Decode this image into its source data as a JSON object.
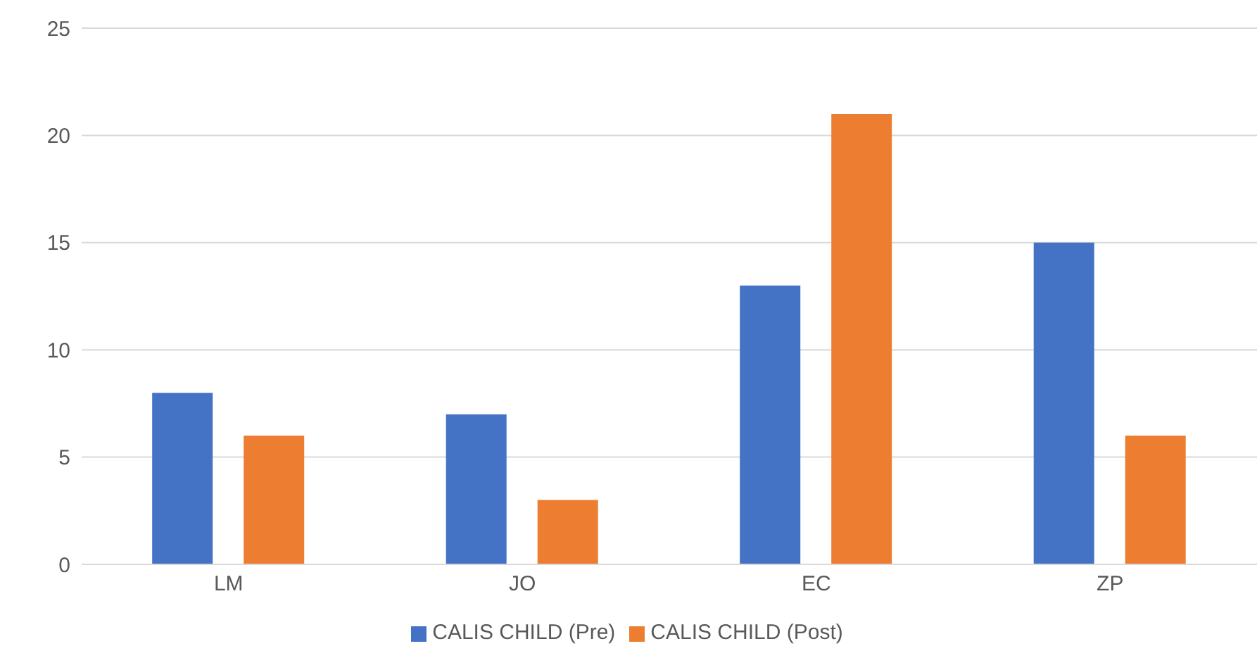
{
  "chart_data": {
    "type": "bar",
    "categories": [
      "LM",
      "JO",
      "EC",
      "ZP"
    ],
    "series": [
      {
        "name": "CALIS CHILD (Pre)",
        "color": "#4472c4",
        "values": [
          8,
          7,
          13,
          15
        ]
      },
      {
        "name": "CALIS CHILD (Post)",
        "color": "#ed7d31",
        "values": [
          6,
          3,
          21,
          6
        ]
      }
    ],
    "ylim": [
      0,
      25
    ],
    "yticks": [
      0,
      5,
      10,
      15,
      20,
      25
    ],
    "grid": "y",
    "legend": "bottom"
  }
}
